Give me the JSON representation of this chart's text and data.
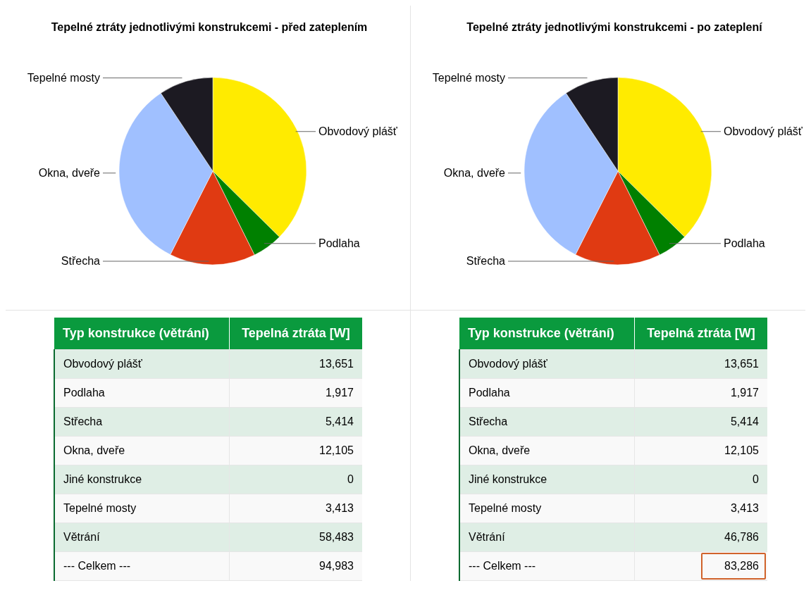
{
  "chart_data": [
    {
      "type": "pie",
      "title": "Tepelné ztráty jednotlivými konstrukcemi - před zateplením",
      "categories": [
        "Obvodový plášť",
        "Podlaha",
        "Střecha",
        "Okna, dveře",
        "Tepelné mosty"
      ],
      "values": [
        37.41,
        5.25,
        14.83,
        33.16,
        9.35
      ],
      "colors": [
        "#ffeb00",
        "#008000",
        "#e03a12",
        "#a0c0ff",
        "#1c1a22"
      ]
    },
    {
      "type": "pie",
      "title": "Tepelné ztráty jednotlivými konstrukcemi - po zateplení",
      "categories": [
        "Obvodový plášť",
        "Podlaha",
        "Střecha",
        "Okna, dveře",
        "Tepelné mosty"
      ],
      "values": [
        37.41,
        5.25,
        14.83,
        33.16,
        9.35
      ],
      "colors": [
        "#ffeb00",
        "#008000",
        "#e03a12",
        "#a0c0ff",
        "#1c1a22"
      ]
    },
    {
      "type": "other",
      "xlabel": "Typ konstrukce (větrání)",
      "ylabel": "Tepelná ztráta [W]",
      "categories": [
        "Obvodový plášť",
        "Podlaha",
        "Střecha",
        "Okna, dveře",
        "Jiné konstrukce",
        "Tepelné mosty",
        "Větrání",
        "--- Celkem ---"
      ],
      "value_labels": [
        "13,651",
        "1,917",
        "5,414",
        "12,105",
        "0",
        "3,413",
        "58,483",
        "94,983"
      ]
    },
    {
      "type": "other",
      "xlabel": "Typ konstrukce (větrání)",
      "ylabel": "Tepelná ztráta [W]",
      "categories": [
        "Obvodový plášť",
        "Podlaha",
        "Střecha",
        "Okna, dveře",
        "Jiné konstrukce",
        "Tepelné mosty",
        "Větrání",
        "--- Celkem ---"
      ],
      "value_labels": [
        "13,651",
        "1,917",
        "5,414",
        "12,105",
        "0",
        "3,413",
        "46,786",
        "83,286"
      ]
    }
  ]
}
